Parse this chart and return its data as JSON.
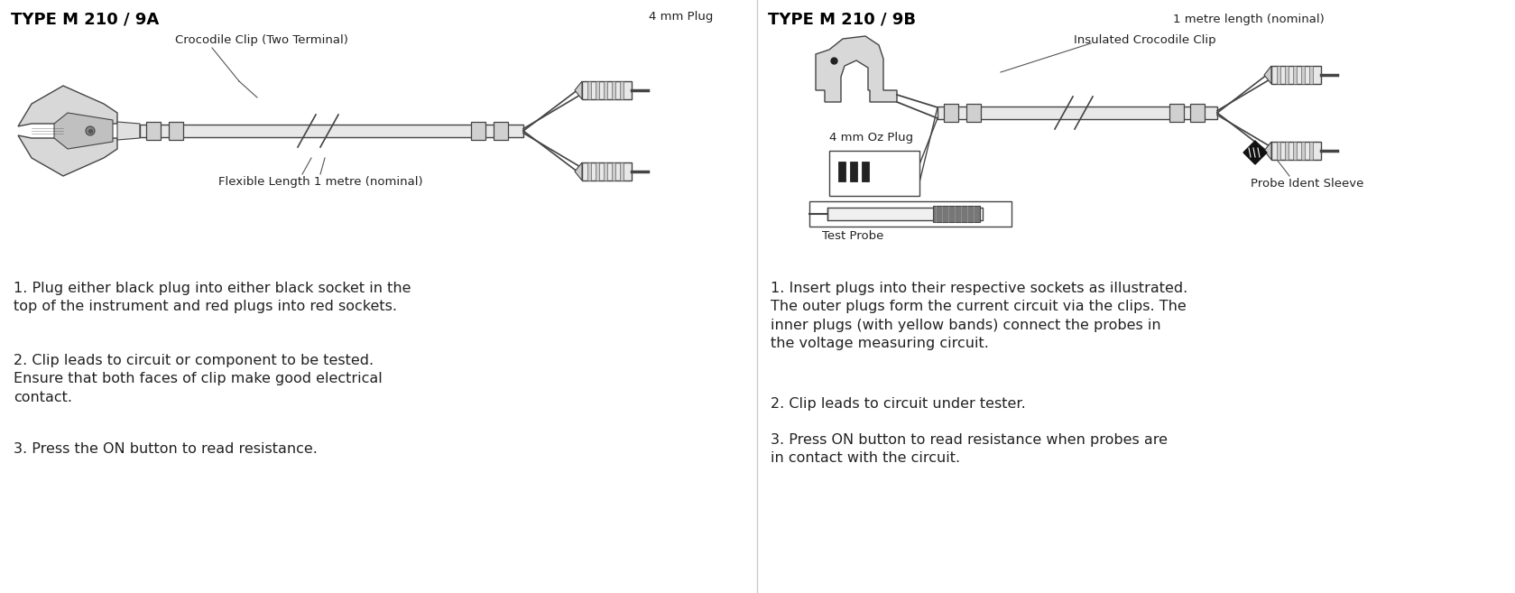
{
  "title_9a": "TYPE M 210 / 9A",
  "title_9b": "TYPE M 210 / 9B",
  "label_9a_plug": "4 mm Plug",
  "label_9a_clip": "Crocodile Clip (Two Terminal)",
  "label_9a_length": "Flexible Length 1 metre (nominal)",
  "label_9b_length": "1 metre length (nominal)",
  "label_9b_clip": "Insulated Crocodile Clip",
  "label_9b_oz": "4 mm Oz Plug",
  "label_9b_probe": "Test Probe",
  "label_9b_sleeve": "Probe Ident Sleeve",
  "text_9a_1": "1. Plug either black plug into either black socket in the\ntop of the instrument and red plugs into red sockets.",
  "text_9a_2": "2. Clip leads to circuit or component to be tested.\nEnsure that both faces of clip make good electrical\ncontact.",
  "text_9a_3": "3. Press the ON button to read resistance.",
  "text_9b_1": "1. Insert plugs into their respective sockets as illustrated.\nThe outer plugs form the current circuit via the clips. The\ninner plugs (with yellow bands) connect the probes in\nthe voltage measuring circuit.",
  "text_9b_2": "2. Clip leads to circuit under tester.",
  "text_9b_3": "3. Press ON button to read resistance when probes are\nin contact with the circuit.",
  "text_color": "#222222",
  "line_color": "#555555",
  "draw_color": "#444444"
}
